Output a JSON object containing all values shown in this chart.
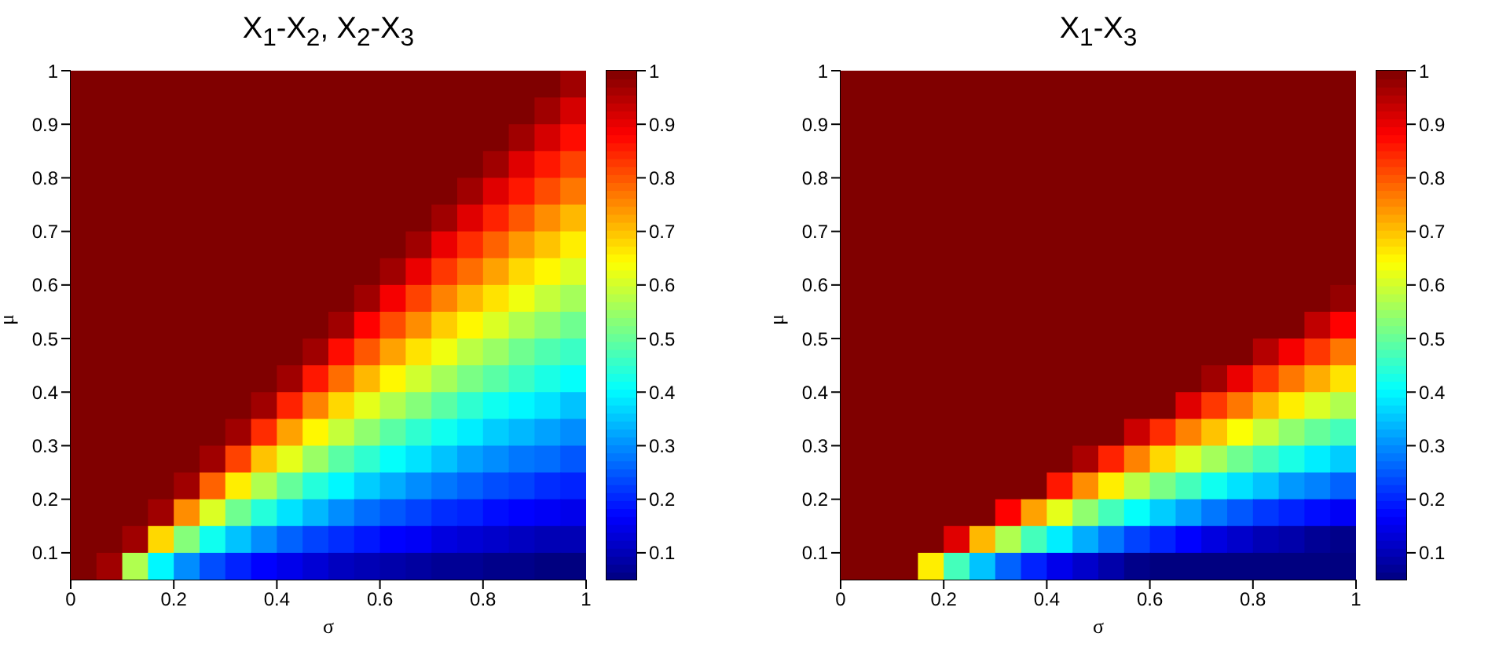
{
  "chart_data": [
    {
      "type": "heatmap",
      "title": "X$_{1}$-X$_{2}$, X$_{2}$-X$_{3}$",
      "xlabel": "σ",
      "ylabel": "μ",
      "xlim": [
        0,
        1
      ],
      "ylim": [
        0.05,
        1
      ],
      "xticks": [
        0,
        0.2,
        0.4,
        0.6,
        0.8,
        1
      ],
      "yticks": [
        0.1,
        0.2,
        0.3,
        0.4,
        0.5,
        0.6,
        0.7,
        0.8,
        0.9,
        1
      ],
      "clim": [
        0.05,
        1
      ],
      "cticks": [
        0.1,
        0.2,
        0.3,
        0.4,
        0.5,
        0.6,
        0.7,
        0.8,
        0.9,
        1
      ],
      "grid": false,
      "cells": [
        [
          1,
          1,
          1,
          1,
          1,
          1,
          1,
          1,
          1,
          1,
          1,
          1,
          1,
          1,
          1,
          1,
          1,
          1,
          1,
          0.97
        ],
        [
          1,
          1,
          1,
          1,
          1,
          1,
          1,
          1,
          1,
          1,
          1,
          1,
          1,
          1,
          1,
          1,
          1,
          1,
          0.97,
          0.92
        ],
        [
          1,
          1,
          1,
          1,
          1,
          1,
          1,
          1,
          1,
          1,
          1,
          1,
          1,
          1,
          1,
          1,
          1,
          0.97,
          0.92,
          0.87
        ],
        [
          1,
          1,
          1,
          1,
          1,
          1,
          1,
          1,
          1,
          1,
          1,
          1,
          1,
          1,
          1,
          1,
          0.97,
          0.91,
          0.86,
          0.82
        ],
        [
          1,
          1,
          1,
          1,
          1,
          1,
          1,
          1,
          1,
          1,
          1,
          1,
          1,
          1,
          1,
          0.97,
          0.91,
          0.86,
          0.81,
          0.77
        ],
        [
          1,
          1,
          1,
          1,
          1,
          1,
          1,
          1,
          1,
          1,
          1,
          1,
          1,
          1,
          0.97,
          0.91,
          0.85,
          0.8,
          0.75,
          0.71
        ],
        [
          1,
          1,
          1,
          1,
          1,
          1,
          1,
          1,
          1,
          1,
          1,
          1,
          1,
          0.97,
          0.9,
          0.84,
          0.79,
          0.74,
          0.7,
          0.66
        ],
        [
          1,
          1,
          1,
          1,
          1,
          1,
          1,
          1,
          1,
          1,
          1,
          1,
          0.97,
          0.9,
          0.83,
          0.78,
          0.73,
          0.68,
          0.65,
          0.61
        ],
        [
          1,
          1,
          1,
          1,
          1,
          1,
          1,
          1,
          1,
          1,
          1,
          0.97,
          0.89,
          0.82,
          0.76,
          0.71,
          0.67,
          0.63,
          0.59,
          0.56
        ],
        [
          1,
          1,
          1,
          1,
          1,
          1,
          1,
          1,
          1,
          1,
          0.97,
          0.88,
          0.81,
          0.75,
          0.69,
          0.65,
          0.61,
          0.57,
          0.54,
          0.51
        ],
        [
          1,
          1,
          1,
          1,
          1,
          1,
          1,
          1,
          1,
          0.97,
          0.87,
          0.8,
          0.73,
          0.67,
          0.63,
          0.58,
          0.55,
          0.51,
          0.48,
          0.46
        ],
        [
          1,
          1,
          1,
          1,
          1,
          1,
          1,
          1,
          0.97,
          0.86,
          0.78,
          0.71,
          0.65,
          0.6,
          0.56,
          0.52,
          0.49,
          0.46,
          0.43,
          0.41
        ],
        [
          1,
          1,
          1,
          1,
          1,
          1,
          1,
          0.97,
          0.85,
          0.76,
          0.68,
          0.62,
          0.57,
          0.53,
          0.49,
          0.45,
          0.42,
          0.4,
          0.38,
          0.35
        ],
        [
          1,
          1,
          1,
          1,
          1,
          1,
          0.97,
          0.84,
          0.73,
          0.65,
          0.59,
          0.54,
          0.49,
          0.45,
          0.42,
          0.39,
          0.36,
          0.34,
          0.32,
          0.3
        ],
        [
          1,
          1,
          1,
          1,
          1,
          0.97,
          0.82,
          0.7,
          0.62,
          0.55,
          0.49,
          0.45,
          0.41,
          0.38,
          0.35,
          0.32,
          0.3,
          0.28,
          0.27,
          0.25
        ],
        [
          1,
          1,
          1,
          1,
          0.97,
          0.79,
          0.66,
          0.57,
          0.5,
          0.44,
          0.4,
          0.36,
          0.33,
          0.3,
          0.28,
          0.26,
          0.24,
          0.23,
          0.21,
          0.2
        ],
        [
          1,
          1,
          1,
          0.97,
          0.75,
          0.61,
          0.51,
          0.44,
          0.38,
          0.34,
          0.3,
          0.27,
          0.25,
          0.23,
          0.21,
          0.2,
          0.18,
          0.17,
          0.16,
          0.15
        ],
        [
          1,
          1,
          0.97,
          0.68,
          0.53,
          0.42,
          0.35,
          0.3,
          0.26,
          0.23,
          0.21,
          0.19,
          0.17,
          0.16,
          0.14,
          0.13,
          0.12,
          0.11,
          0.1,
          0.1
        ],
        [
          1,
          0.97,
          0.57,
          0.4,
          0.3,
          0.24,
          0.2,
          0.17,
          0.15,
          0.13,
          0.11,
          0.1,
          0.09,
          0.08,
          0.07,
          0.07,
          0.06,
          0.06,
          0.05,
          0.05
        ]
      ]
    },
    {
      "type": "heatmap",
      "title": "X$_{1}$-X$_{3}$",
      "xlabel": "σ",
      "ylabel": "μ",
      "xlim": [
        0,
        1
      ],
      "ylim": [
        0.05,
        1
      ],
      "xticks": [
        0,
        0.2,
        0.4,
        0.6,
        0.8,
        1
      ],
      "yticks": [
        0.1,
        0.2,
        0.3,
        0.4,
        0.5,
        0.6,
        0.7,
        0.8,
        0.9,
        1
      ],
      "clim": [
        0.05,
        1
      ],
      "cticks": [
        0.1,
        0.2,
        0.3,
        0.4,
        0.5,
        0.6,
        0.7,
        0.8,
        0.9,
        1
      ],
      "grid": false,
      "cells": [
        [
          1,
          1,
          1,
          1,
          1,
          1,
          1,
          1,
          1,
          1,
          1,
          1,
          1,
          1,
          1,
          1,
          1,
          1,
          1,
          1
        ],
        [
          1,
          1,
          1,
          1,
          1,
          1,
          1,
          1,
          1,
          1,
          1,
          1,
          1,
          1,
          1,
          1,
          1,
          1,
          1,
          1
        ],
        [
          1,
          1,
          1,
          1,
          1,
          1,
          1,
          1,
          1,
          1,
          1,
          1,
          1,
          1,
          1,
          1,
          1,
          1,
          1,
          1
        ],
        [
          1,
          1,
          1,
          1,
          1,
          1,
          1,
          1,
          1,
          1,
          1,
          1,
          1,
          1,
          1,
          1,
          1,
          1,
          1,
          1
        ],
        [
          1,
          1,
          1,
          1,
          1,
          1,
          1,
          1,
          1,
          1,
          1,
          1,
          1,
          1,
          1,
          1,
          1,
          1,
          1,
          1
        ],
        [
          1,
          1,
          1,
          1,
          1,
          1,
          1,
          1,
          1,
          1,
          1,
          1,
          1,
          1,
          1,
          1,
          1,
          1,
          1,
          1
        ],
        [
          1,
          1,
          1,
          1,
          1,
          1,
          1,
          1,
          1,
          1,
          1,
          1,
          1,
          1,
          1,
          1,
          1,
          1,
          1,
          1
        ],
        [
          1,
          1,
          1,
          1,
          1,
          1,
          1,
          1,
          1,
          1,
          1,
          1,
          1,
          1,
          1,
          1,
          1,
          1,
          1,
          1
        ],
        [
          1,
          1,
          1,
          1,
          1,
          1,
          1,
          1,
          1,
          1,
          1,
          1,
          1,
          1,
          1,
          1,
          1,
          1,
          1,
          0.98
        ],
        [
          1,
          1,
          1,
          1,
          1,
          1,
          1,
          1,
          1,
          1,
          1,
          1,
          1,
          1,
          1,
          1,
          1,
          1,
          0.94,
          0.88
        ],
        [
          1,
          1,
          1,
          1,
          1,
          1,
          1,
          1,
          1,
          1,
          1,
          1,
          1,
          1,
          1,
          1,
          0.95,
          0.89,
          0.83,
          0.77
        ],
        [
          1,
          1,
          1,
          1,
          1,
          1,
          1,
          1,
          1,
          1,
          1,
          1,
          1,
          1,
          0.97,
          0.9,
          0.83,
          0.77,
          0.72,
          0.67
        ],
        [
          1,
          1,
          1,
          1,
          1,
          1,
          1,
          1,
          1,
          1,
          1,
          1,
          1,
          0.91,
          0.83,
          0.77,
          0.71,
          0.66,
          0.61,
          0.57
        ],
        [
          1,
          1,
          1,
          1,
          1,
          1,
          1,
          1,
          1,
          1,
          1,
          0.93,
          0.84,
          0.76,
          0.7,
          0.64,
          0.59,
          0.54,
          0.5,
          0.47
        ],
        [
          1,
          1,
          1,
          1,
          1,
          1,
          1,
          1,
          1,
          0.96,
          0.85,
          0.76,
          0.68,
          0.61,
          0.56,
          0.51,
          0.47,
          0.43,
          0.39,
          0.36
        ],
        [
          1,
          1,
          1,
          1,
          1,
          1,
          1,
          1,
          0.86,
          0.75,
          0.66,
          0.58,
          0.52,
          0.47,
          0.42,
          0.38,
          0.35,
          0.31,
          0.29,
          0.26
        ],
        [
          1,
          1,
          1,
          1,
          1,
          1,
          0.88,
          0.73,
          0.62,
          0.54,
          0.47,
          0.41,
          0.36,
          0.32,
          0.28,
          0.25,
          0.22,
          0.2,
          0.18,
          0.16
        ],
        [
          1,
          1,
          1,
          1,
          0.91,
          0.71,
          0.57,
          0.47,
          0.39,
          0.33,
          0.28,
          0.23,
          0.2,
          0.17,
          0.14,
          0.12,
          0.1,
          0.09,
          0.07,
          0.06
        ],
        [
          1,
          1,
          1,
          0.66,
          0.47,
          0.35,
          0.26,
          0.2,
          0.15,
          0.12,
          0.09,
          0.06,
          0.05,
          0.05,
          0.05,
          0.05,
          0.05,
          0.05,
          0.05,
          0.05
        ]
      ]
    }
  ]
}
